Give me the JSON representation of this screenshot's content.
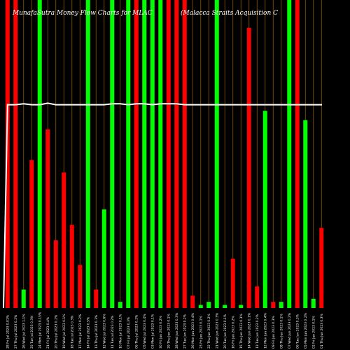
{
  "chart_data": {
    "type": "bar",
    "title": "MunafaSutra  Money Flow  Charts for MLAC",
    "subtitle": "(Malacca  Straits Acquisition  C",
    "xlabel": "",
    "ylabel": "",
    "ylim": [
      0,
      100
    ],
    "grid": true,
    "colors": {
      "up": "#00ff00",
      "down": "#ff0000",
      "line": "#ffffff",
      "grid": "#8a5a00",
      "background": "#000000"
    },
    "categories": [
      "28 Fri Jul 2023 0.01%",
      "27 Thu Jul 2023 0.2%",
      "26 Wed Jul 2023 1.1%",
      "25 Tue Jul 2023 0.3%",
      "24 Mon Jul 2023 0.15%",
      "21 Fri Jul 2023 0.4%",
      "20 Thu Jul 2023 0.2%",
      "19 Wed Jul 2023 0.1%",
      "18 Tue Jul 2023 0.3%",
      "17 Mon Jul 2023 0.2%",
      "14 Fri Jul 2023 0.5%",
      "13 Thu Jul 2023 0.3%",
      "12 Wed Jul 2023 0.6%",
      "11 Tue Jul 2023 0.2%",
      "10 Mon Jul 2023 0.1%",
      "07 Fri Jul 2023 0.3%",
      "06 Thu Jul 2023 0.2%",
      "05 Wed Jul 2023 0.4%",
      "03 Mon Jul 2023 0.1%",
      "30 Fri Jun 2023 0.2%",
      "29 Thu Jun 2023 0.1%",
      "28 Wed Jun 2023 0.3%",
      "27 Tue Jun 2023 0.2%",
      "26 Mon Jun 2023 0.4%",
      "23 Fri Jun 2023 0.1%",
      "22 Thu Jun 2023 0.2%",
      "21 Wed Jun 2023 0.3%",
      "20 Tue Jun 2023 0.1%",
      "16 Fri Jun 2023 0.2%",
      "15 Thu Jun 2023 0.3%",
      "14 Wed Jun 2023 0.1%",
      "13 Tue Jun 2023 0.2%",
      "12 Mon Jun 2023 0.4%",
      "09 Fri Jun 2023 0.3%",
      "08 Thu Jun 2023 0.1%",
      "07 Wed Jun 2023 0.2%",
      "06 Tue Jun 2023 0.3%",
      "05 Mon Jun 2023 0.2%",
      "02 Fri Jun 2023 0.1%",
      "01 Thu Jun 2023 0.3%"
    ],
    "series": [
      {
        "values": [
          100,
          100,
          6,
          48,
          100,
          58,
          22,
          44,
          27,
          14,
          100,
          6,
          32,
          100,
          2,
          100,
          100,
          100,
          100,
          100,
          100,
          100,
          100,
          4,
          1,
          2,
          100,
          1,
          16,
          1,
          91,
          7,
          64,
          2,
          2,
          100,
          100,
          61,
          3,
          26
        ],
        "directions": [
          "down",
          "down",
          "up",
          "down",
          "up",
          "down",
          "down",
          "down",
          "down",
          "down",
          "up",
          "down",
          "up",
          "up",
          "up",
          "up",
          "down",
          "up",
          "up",
          "up",
          "down",
          "down",
          "down",
          "down",
          "up",
          "up",
          "up",
          "up",
          "down",
          "up",
          "down",
          "down",
          "up",
          "down",
          "up",
          "up",
          "down",
          "up",
          "up",
          "down"
        ]
      }
    ],
    "line_values": [
      66,
      66,
      66.3,
      66,
      66,
      66.5,
      66,
      66,
      66,
      66,
      66,
      66,
      66,
      66.3,
      66.3,
      66,
      66.3,
      66.3,
      66,
      66.3,
      66.3,
      66.3,
      66,
      66,
      66,
      66,
      66,
      66,
      66,
      66,
      66,
      66,
      66,
      66,
      66,
      66,
      66,
      66,
      66,
      66
    ]
  }
}
